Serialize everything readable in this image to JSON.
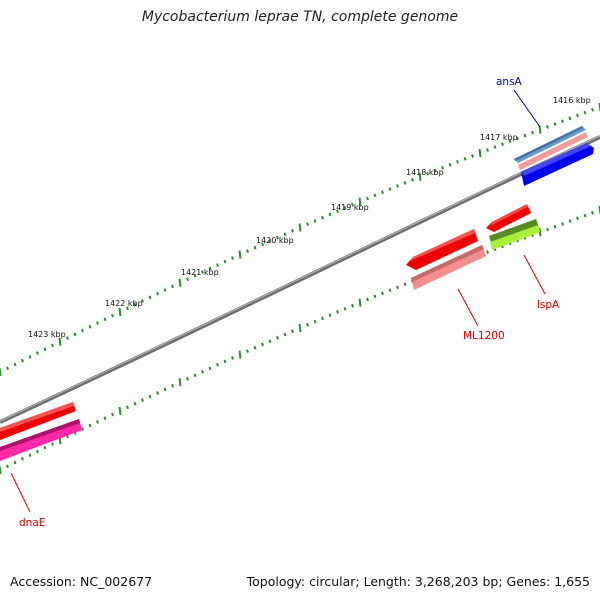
{
  "title": "Mycobacterium leprae TN, complete genome",
  "footer": {
    "accession": "Accession: NC_002677",
    "summary": "Topology: circular; Length: 3,268,203 bp; Genes: 1,655"
  },
  "ticks": [
    "1416 kbp",
    "1417 kbp",
    "1418 kbp",
    "1419 kbp",
    "1420 kbp",
    "1421 kbp",
    "1422 kbp",
    "1423 kbp"
  ],
  "genes": [
    {
      "name": "ansA",
      "color": "#0000cc"
    },
    {
      "name": "ML1200",
      "color": "#dd0000"
    },
    {
      "name": "lspA",
      "color": "#dd0000"
    },
    {
      "name": "dnaE",
      "color": "#dd0000"
    }
  ],
  "colors": {
    "backbone": "#7a7a7a",
    "tick_dots": "#2e8b2e",
    "forward_gene": "#0000ff",
    "reverse_gene": "#ff0000"
  }
}
